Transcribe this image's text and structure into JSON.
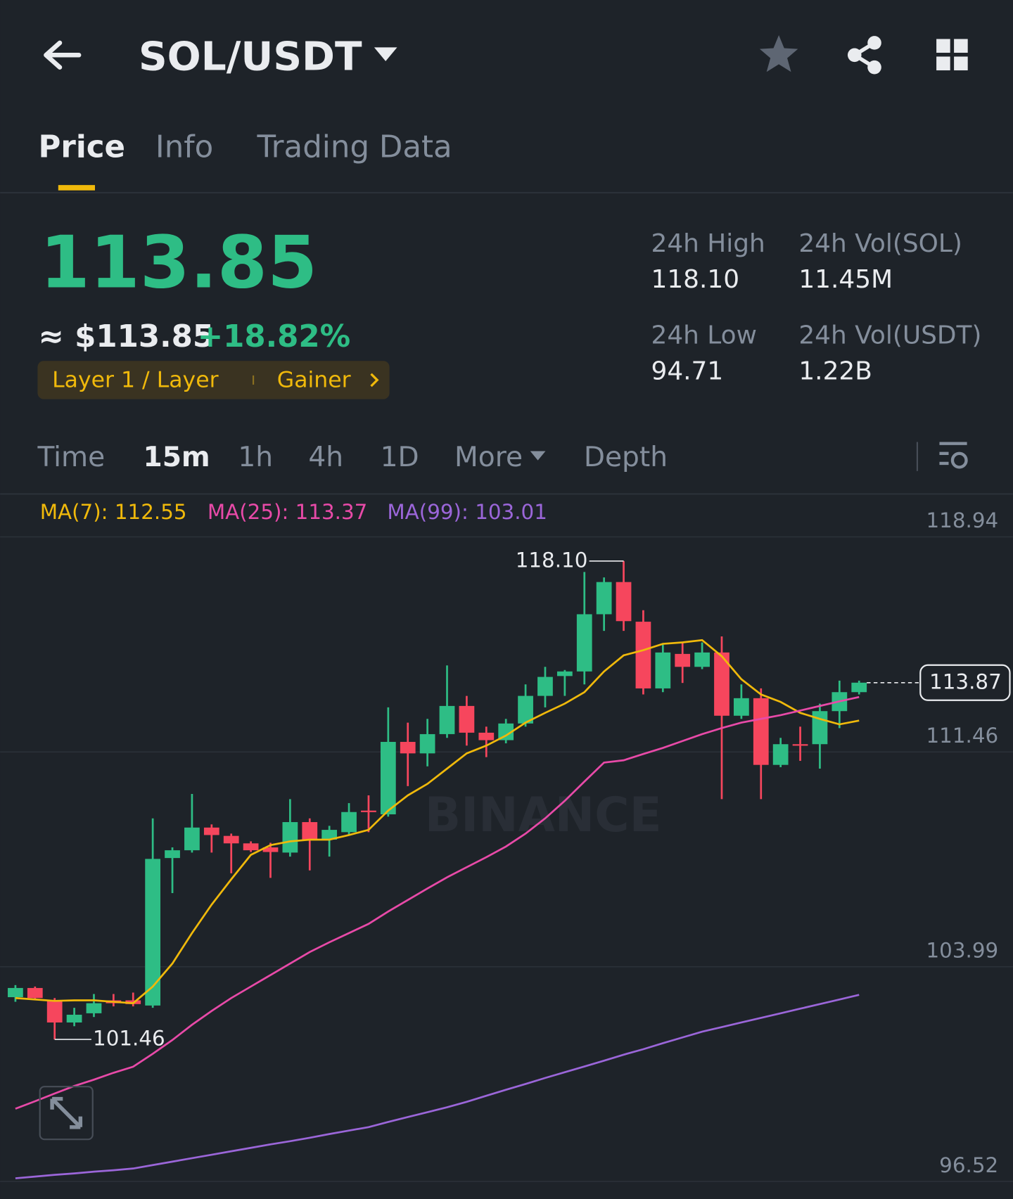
{
  "header": {
    "title": "SOL/USDT"
  },
  "tabs": [
    "Price",
    "Info",
    "Trading Data"
  ],
  "ticker": {
    "last": "113.85",
    "fiat": "≈ $113.85",
    "change": "+18.82%",
    "tags": [
      "Layer 1 / Layer",
      "Gainer"
    ],
    "stats": [
      {
        "label": "24h High",
        "value": "118.10"
      },
      {
        "label": "24h Vol(SOL)",
        "value": "11.45M"
      },
      {
        "label": "24h Low",
        "value": "94.71"
      },
      {
        "label": "24h Vol(USDT)",
        "value": "1.22B"
      }
    ]
  },
  "intervals": [
    "Time",
    "15m",
    "1h",
    "4h",
    "1D",
    "More",
    "Depth"
  ],
  "chart_data": {
    "type": "candlestick",
    "watermark": "BINANCE",
    "up_color": "#2ebd85",
    "down_color": "#f6465d",
    "open": [
      102.93,
      103.25,
      102.82,
      102.05,
      102.37,
      102.82,
      102.82,
      102.64,
      107.77,
      108.04,
      108.83,
      108.54,
      108.28,
      108.14,
      107.96,
      109.02,
      108.41,
      108.67,
      109.42,
      109.29,
      111.81,
      111.41,
      112.08,
      113.06,
      112.13,
      111.87,
      112.45,
      113.41,
      114.1,
      114.26,
      116.25,
      117.37,
      115.99,
      113.67,
      114.87,
      114.42,
      114.92,
      112.72,
      113.33,
      111.01,
      111.73,
      111.73,
      112.88,
      113.54
    ],
    "high": [
      103.35,
      103.3,
      102.9,
      102.56,
      103.04,
      103.04,
      103.09,
      109.15,
      108.14,
      110.0,
      108.94,
      108.62,
      108.35,
      108.3,
      109.82,
      109.15,
      108.89,
      109.68,
      109.95,
      113.01,
      112.48,
      112.61,
      114.47,
      113.41,
      112.34,
      112.61,
      113.81,
      114.42,
      114.31,
      117.72,
      117.53,
      118.1,
      116.39,
      115.19,
      115.27,
      115.27,
      115.48,
      113.81,
      113.67,
      111.95,
      112.34,
      113.14,
      113.94,
      113.94
    ],
    "low": [
      102.77,
      102.82,
      101.46,
      101.92,
      102.24,
      102.61,
      102.61,
      102.56,
      106.55,
      107.96,
      107.96,
      107.24,
      107.98,
      107.08,
      107.82,
      107.34,
      107.82,
      108.57,
      108.67,
      109.21,
      110.27,
      110.96,
      111.95,
      111.68,
      111.28,
      111.76,
      112.34,
      113.01,
      113.41,
      113.81,
      115.67,
      115.67,
      113.46,
      113.54,
      113.86,
      114.34,
      109.82,
      112.61,
      109.82,
      110.93,
      111.15,
      110.88,
      112.29,
      113.46
    ],
    "close": [
      103.25,
      102.9,
      102.05,
      102.32,
      102.72,
      102.72,
      102.69,
      107.74,
      108.04,
      108.83,
      108.57,
      108.28,
      108.04,
      107.98,
      109.02,
      108.41,
      108.75,
      109.37,
      109.37,
      111.81,
      111.41,
      112.08,
      113.06,
      112.13,
      111.87,
      112.45,
      113.41,
      114.07,
      114.26,
      116.25,
      117.37,
      116.01,
      113.67,
      114.92,
      114.42,
      114.92,
      112.72,
      113.33,
      111.01,
      111.73,
      111.68,
      112.88,
      113.54,
      113.87
    ],
    "series": [
      {
        "name": "MA(7): 112.55",
        "color": "#f0b90b",
        "values": [
          102.9,
          102.85,
          102.8,
          102.82,
          102.82,
          102.77,
          102.72,
          103.3,
          104.1,
          105.16,
          106.15,
          107.03,
          107.88,
          108.22,
          108.35,
          108.41,
          108.41,
          108.57,
          108.75,
          109.42,
          109.95,
          110.35,
          110.88,
          111.41,
          111.68,
          112.03,
          112.48,
          112.82,
          113.14,
          113.54,
          114.26,
          114.82,
          115.0,
          115.22,
          115.27,
          115.35,
          114.79,
          113.99,
          113.46,
          113.2,
          112.82,
          112.61,
          112.42,
          112.55
        ]
      },
      {
        "name": "MA(25): 113.37",
        "color": "#e84aa8",
        "values": [
          99.05,
          99.31,
          99.58,
          99.84,
          100.06,
          100.3,
          100.51,
          100.96,
          101.44,
          101.97,
          102.45,
          102.9,
          103.3,
          103.7,
          104.1,
          104.5,
          104.84,
          105.16,
          105.48,
          105.91,
          106.31,
          106.71,
          107.1,
          107.45,
          107.8,
          108.17,
          108.62,
          109.15,
          109.76,
          110.43,
          111.09,
          111.17,
          111.39,
          111.6,
          111.84,
          112.08,
          112.29,
          112.48,
          112.61,
          112.74,
          112.9,
          113.06,
          113.22,
          113.37
        ]
      },
      {
        "name": "MA(99): 103.01",
        "color": "#9b66d9",
        "values": [
          96.63,
          96.69,
          96.75,
          96.8,
          96.86,
          96.91,
          96.97,
          97.09,
          97.21,
          97.33,
          97.45,
          97.57,
          97.69,
          97.81,
          97.92,
          98.04,
          98.17,
          98.29,
          98.41,
          98.59,
          98.76,
          98.93,
          99.1,
          99.29,
          99.5,
          99.71,
          99.91,
          100.12,
          100.32,
          100.52,
          100.72,
          100.93,
          101.12,
          101.33,
          101.53,
          101.73,
          101.89,
          102.05,
          102.21,
          102.37,
          102.53,
          102.69,
          102.85,
          103.01
        ]
      }
    ],
    "high_label": {
      "value": 118.1,
      "label": "118.10"
    },
    "low_label": 101.46,
    "last_price": 113.87,
    "ylim": [
      95.91,
      120.38
    ],
    "yticks": [
      96.52,
      103.99,
      111.46,
      118.94
    ],
    "grid": true
  }
}
